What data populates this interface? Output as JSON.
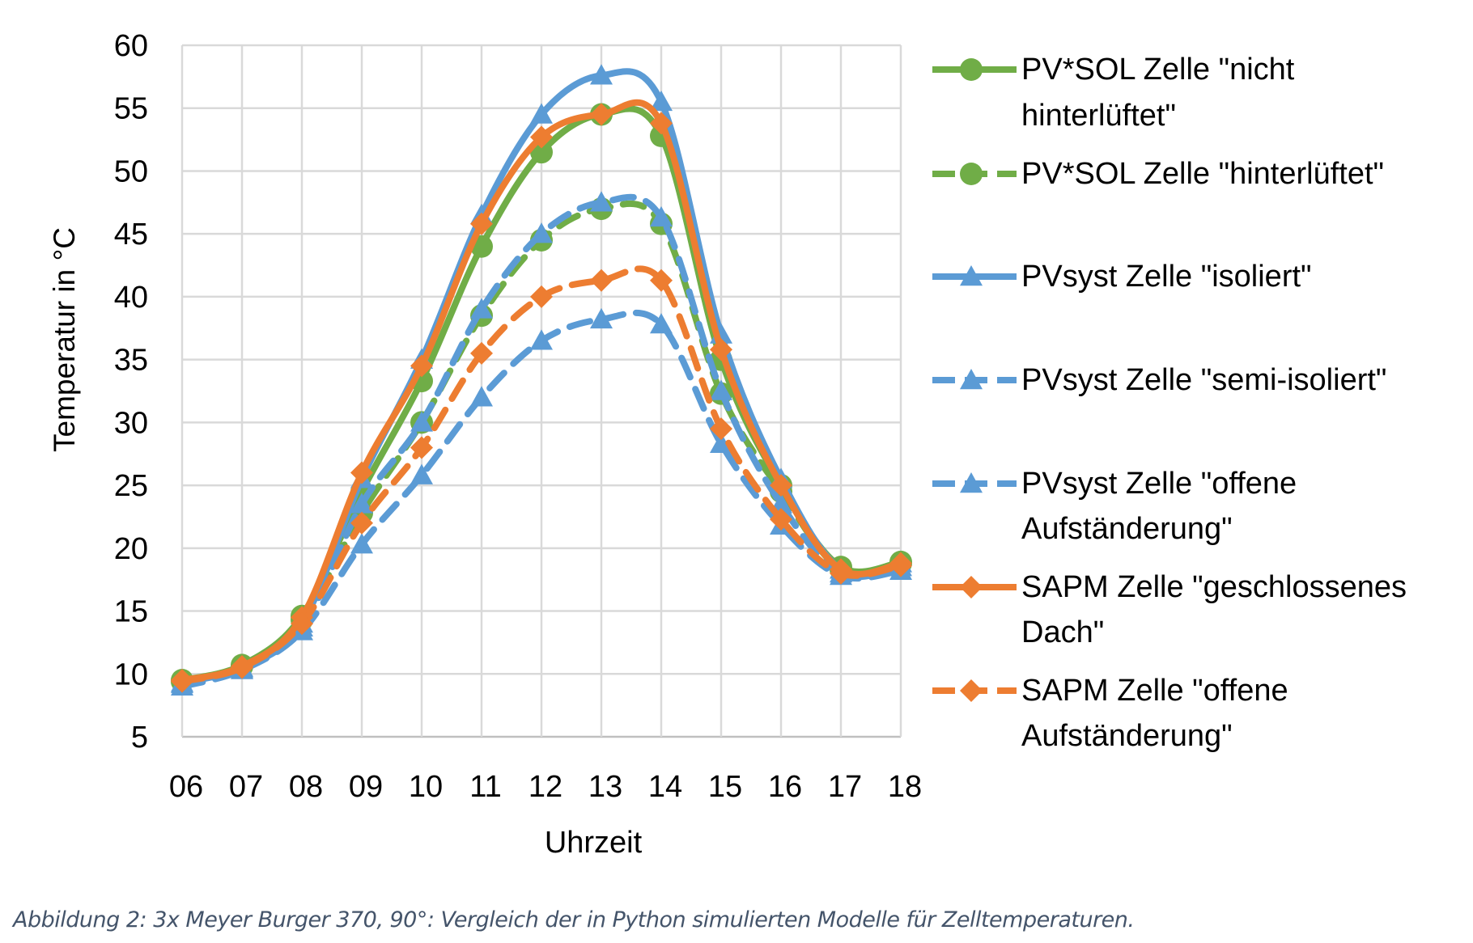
{
  "chart_data": {
    "type": "line",
    "xlabel": "Uhrzeit",
    "ylabel": "Temperatur in °C",
    "categories": [
      "06",
      "07",
      "08",
      "09",
      "10",
      "11",
      "12",
      "13",
      "14",
      "15",
      "16",
      "17",
      "18"
    ],
    "ylim": [
      5,
      60
    ],
    "yticks": [
      5,
      10,
      15,
      20,
      25,
      30,
      35,
      40,
      45,
      50,
      55,
      60
    ],
    "grid": true,
    "legend_position": "right",
    "series": [
      {
        "name": "PV*SOL Zelle \"nicht hinterlüftet\"",
        "legend_lines": [
          "PV*SOL Zelle \"nicht",
          "hinterlüftet\""
        ],
        "color": "#70ad47",
        "dash": "solid",
        "marker": "circle",
        "values": [
          9.5,
          10.7,
          14.6,
          24.5,
          33.3,
          44.0,
          51.5,
          54.5,
          52.8,
          35.0,
          25.0,
          18.5,
          18.9
        ]
      },
      {
        "name": "PV*SOL Zelle \"hinterlüftet\"",
        "legend_lines": [
          "PV*SOL Zelle \"hinterlüftet\""
        ],
        "color": "#70ad47",
        "dash": "dashed",
        "marker": "circle",
        "values": [
          9.4,
          10.6,
          14.3,
          22.8,
          30.0,
          38.5,
          44.5,
          47.0,
          45.8,
          32.3,
          24.5,
          18.3,
          18.8
        ]
      },
      {
        "name": "PVsyst Zelle \"isoliert\"",
        "legend_lines": [
          "PVsyst Zelle \"isoliert\""
        ],
        "color": "#5b9bd5",
        "dash": "solid",
        "marker": "triangle",
        "values": [
          9.3,
          10.5,
          14.0,
          25.5,
          35.0,
          46.5,
          54.5,
          57.6,
          55.5,
          37.0,
          25.5,
          18.3,
          18.8
        ]
      },
      {
        "name": "PVsyst Zelle \"semi-isoliert\"",
        "legend_lines": [
          "PVsyst Zelle \"semi-isoliert\""
        ],
        "color": "#5b9bd5",
        "dash": "dashed",
        "marker": "triangle",
        "values": [
          9.2,
          10.4,
          13.7,
          23.5,
          30.0,
          39.0,
          45.0,
          47.5,
          46.3,
          32.5,
          23.5,
          18.0,
          18.5
        ]
      },
      {
        "name": "PVsyst Zelle \"offene Aufständerung\"",
        "legend_lines": [
          "PVsyst Zelle \"offene",
          "Aufständerung\""
        ],
        "color": "#5b9bd5",
        "dash": "dashed",
        "marker": "triangle",
        "values": [
          9.0,
          10.3,
          13.4,
          20.3,
          25.8,
          32.0,
          36.5,
          38.2,
          37.8,
          28.3,
          21.8,
          17.8,
          18.2
        ]
      },
      {
        "name": "SAPM Zelle \"geschlossenes Dach\"",
        "legend_lines": [
          "SAPM Zelle \"geschlossenes",
          "Dach\""
        ],
        "color": "#ed7d31",
        "dash": "solid",
        "marker": "diamond",
        "values": [
          9.5,
          10.6,
          14.5,
          26.0,
          34.5,
          45.8,
          52.7,
          54.5,
          53.8,
          35.8,
          25.0,
          18.3,
          18.8
        ]
      },
      {
        "name": "SAPM Zelle \"offene Aufständerung\"",
        "legend_lines": [
          "SAPM Zelle \"offene",
          "Aufständerung\""
        ],
        "color": "#ed7d31",
        "dash": "dashed",
        "marker": "diamond",
        "values": [
          9.4,
          10.5,
          14.0,
          22.0,
          28.0,
          35.5,
          40.0,
          41.3,
          41.3,
          29.5,
          22.3,
          18.0,
          18.6
        ]
      }
    ]
  },
  "caption": "Abbildung 2: 3x Meyer Burger 370, 90°: Vergleich der in Python simulierten Modelle für Zelltemperaturen."
}
